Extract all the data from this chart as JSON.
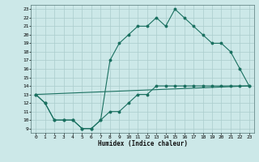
{
  "xlabel": "Humidex (Indice chaleur)",
  "bg_color": "#cce8e8",
  "grid_color": "#aacccc",
  "line_color": "#1a7060",
  "xlim": [
    -0.5,
    23.5
  ],
  "ylim": [
    8.5,
    23.5
  ],
  "xticks": [
    0,
    1,
    2,
    3,
    4,
    5,
    6,
    7,
    8,
    9,
    10,
    11,
    12,
    13,
    14,
    15,
    16,
    17,
    18,
    19,
    20,
    21,
    22,
    23
  ],
  "yticks": [
    9,
    10,
    11,
    12,
    13,
    14,
    15,
    16,
    17,
    18,
    19,
    20,
    21,
    22,
    23
  ],
  "line1_x": [
    0,
    1,
    2,
    3,
    4,
    5,
    6,
    7,
    8,
    9,
    10,
    11,
    12,
    13,
    14,
    15,
    16,
    17,
    18,
    19,
    20,
    21,
    22,
    23
  ],
  "line1_y": [
    13,
    12,
    10,
    10,
    10,
    9,
    9,
    10,
    17,
    19,
    20,
    21,
    21,
    22,
    21,
    23,
    22,
    21,
    20,
    19,
    19,
    18,
    16,
    14
  ],
  "line2_x": [
    0,
    1,
    2,
    3,
    4,
    5,
    6,
    7,
    8,
    9,
    10,
    11,
    12,
    13,
    14,
    15,
    16,
    17,
    18,
    19,
    20,
    21,
    22,
    23
  ],
  "line2_y": [
    13,
    12,
    10,
    10,
    10,
    9,
    9,
    10,
    11,
    11,
    12,
    13,
    13,
    14,
    14,
    14,
    14,
    14,
    14,
    14,
    14,
    14,
    14,
    14
  ],
  "line3_x": [
    0,
    23
  ],
  "line3_y": [
    13,
    14
  ]
}
